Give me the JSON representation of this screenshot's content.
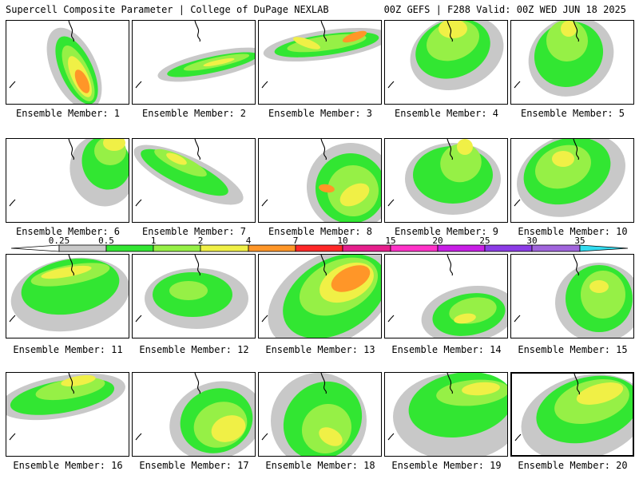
{
  "header": {
    "left": "Supercell Composite Parameter | College of DuPage NEXLAB",
    "right": "00Z GEFS | F288 Valid: 00Z WED JUN 18 2025"
  },
  "panel_label_prefix": "Ensemble Member: ",
  "members": [
    1,
    2,
    3,
    4,
    5,
    6,
    7,
    8,
    9,
    10,
    11,
    12,
    13,
    14,
    15,
    16,
    17,
    18,
    19,
    20
  ],
  "colorbar": {
    "levels": [
      "0.25",
      "0.5",
      "1",
      "2",
      "4",
      "7",
      "10",
      "15",
      "20",
      "25",
      "30",
      "35"
    ],
    "colors": [
      "#ffffff",
      "#c8c8c8",
      "#32e632",
      "#96f046",
      "#f0f046",
      "#ff9628",
      "#ff2828",
      "#e61e8c",
      "#ff32c8",
      "#c81ee6",
      "#8c3ce6",
      "#a064dc",
      "#32dcf0"
    ]
  },
  "highlighted_member": 20
}
